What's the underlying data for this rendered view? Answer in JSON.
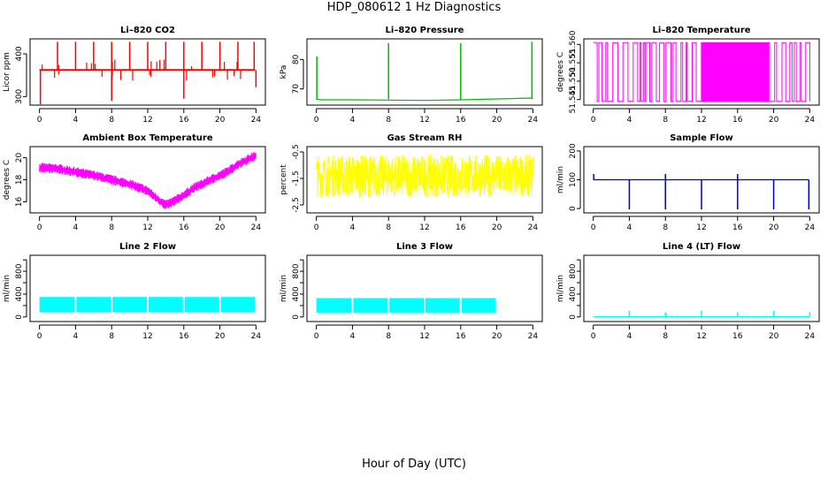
{
  "figure": {
    "title": "HDP_080612  1 Hz Diagnostics",
    "xlabel": "Hour of Day (UTC)"
  },
  "chart_data": [
    {
      "type": "line",
      "title": "Li–820 CO2",
      "ylabel": "Licor ppm",
      "color": "#ff0000",
      "xlim": [
        0,
        24
      ],
      "ylim": [
        280,
        435
      ],
      "yticks": [
        300,
        400
      ],
      "xticks": [
        0,
        4,
        8,
        12,
        16,
        20,
        24
      ],
      "series": [
        {
          "x": [
            0,
            1,
            2,
            3,
            4,
            5,
            6,
            7,
            8,
            9,
            10,
            11,
            12,
            13,
            14,
            15,
            16,
            17,
            18,
            19,
            20,
            21,
            22,
            23,
            23.9
          ],
          "y": [
            362,
            362,
            362,
            362,
            362,
            362,
            362,
            362,
            362,
            362,
            362,
            362,
            362,
            362,
            362,
            362,
            362,
            362,
            362,
            362,
            362,
            362,
            362,
            362,
            362
          ]
        }
      ],
      "spikes_up": [
        {
          "x": 2,
          "y": 428
        },
        {
          "x": 4,
          "y": 428
        },
        {
          "x": 6,
          "y": 428
        },
        {
          "x": 8,
          "y": 428
        },
        {
          "x": 10,
          "y": 428
        },
        {
          "x": 12,
          "y": 428
        },
        {
          "x": 14,
          "y": 428
        },
        {
          "x": 16,
          "y": 428
        },
        {
          "x": 18,
          "y": 428
        },
        {
          "x": 20,
          "y": 428
        },
        {
          "x": 22,
          "y": 428
        },
        {
          "x": 23.8,
          "y": 428
        }
      ],
      "spikes_down": [
        {
          "x": 0.1,
          "y": 282
        },
        {
          "x": 8,
          "y": 290
        },
        {
          "x": 16,
          "y": 295
        },
        {
          "x": 24,
          "y": 322
        }
      ]
    },
    {
      "type": "line",
      "title": "Li–820 Pressure",
      "ylabel": "kPa",
      "color": "#00bb00",
      "xlim": [
        0,
        24
      ],
      "ylim": [
        64.5,
        87
      ],
      "yticks": [
        70,
        80
      ],
      "xticks": [
        0,
        4,
        8,
        12,
        16,
        20,
        24
      ],
      "series": [
        {
          "x": [
            0,
            0.5,
            4,
            8,
            12,
            16,
            20,
            23.9
          ],
          "y": [
            66.5,
            66.3,
            66.3,
            66.2,
            66.1,
            66.3,
            66.6,
            66.9
          ]
        }
      ],
      "spikes_up": [
        {
          "x": 0.05,
          "y": 81
        },
        {
          "x": 8,
          "y": 85.5
        },
        {
          "x": 16,
          "y": 85.5
        },
        {
          "x": 23.9,
          "y": 86
        }
      ]
    },
    {
      "type": "line",
      "title": "Li–820 Temperature",
      "ylabel": "degrees C",
      "color": "#ff00ff",
      "xlim": [
        0,
        24
      ],
      "ylim": [
        51.5435,
        51.5615
      ],
      "yticks": [
        51.545,
        51.55,
        51.555,
        51.56
      ],
      "ytick_labels": [
        "51.545",
        "51.550",
        "51.555",
        "51.560"
      ],
      "xticks": [
        0,
        4,
        8,
        12,
        16,
        20,
        24
      ],
      "levels": [
        51.5445,
        51.5605
      ],
      "dense_band": [
        11.5,
        19.4
      ]
    },
    {
      "type": "line",
      "title": "Ambient Box Temperature",
      "ylabel": "degrees C",
      "color": "#ff00ff",
      "xlim": [
        0,
        24
      ],
      "ylim": [
        15,
        21
      ],
      "yticks": [
        16,
        18,
        20
      ],
      "xticks": [
        0,
        4,
        8,
        12,
        16,
        20,
        24
      ],
      "series": [
        {
          "x": [
            0,
            2,
            4,
            6,
            8,
            10,
            11,
            12,
            13,
            14,
            15,
            16,
            17,
            18,
            19,
            20,
            21,
            22,
            23,
            24
          ],
          "y": [
            19.1,
            19.0,
            18.7,
            18.4,
            18.0,
            17.6,
            17.3,
            17.0,
            16.3,
            15.7,
            16.1,
            16.6,
            17.2,
            17.6,
            18.0,
            18.4,
            18.8,
            19.4,
            19.8,
            20.2
          ]
        }
      ],
      "noise_amplitude": 0.45
    },
    {
      "type": "line",
      "title": "Gas Stream RH",
      "ylabel": "percent",
      "color": "#ffff00",
      "xlim": [
        0,
        24
      ],
      "ylim": [
        -2.8,
        -0.3
      ],
      "yticks": [
        -2.5,
        -1.5,
        -0.5
      ],
      "xticks": [
        0,
        4,
        8,
        12,
        16,
        20,
        24
      ],
      "band": [
        -2.2,
        -0.6
      ]
    },
    {
      "type": "line",
      "title": "Sample Flow",
      "ylabel": "ml/min",
      "color": "#0000cc",
      "xlim": [
        0,
        24
      ],
      "ylim": [
        -15,
        215
      ],
      "yticks": [
        0,
        100,
        200
      ],
      "xticks": [
        0,
        4,
        8,
        12,
        16,
        20,
        24
      ],
      "series": [
        {
          "x": [
            0,
            2,
            4,
            8,
            12,
            16,
            20,
            23.9
          ],
          "y": [
            100,
            100,
            100,
            100,
            100,
            100,
            100,
            100
          ]
        }
      ],
      "spikes_up": [
        {
          "x": 0.05,
          "y": 120
        },
        {
          "x": 8,
          "y": 120
        },
        {
          "x": 16,
          "y": 120
        }
      ],
      "spikes_down": [
        {
          "x": 4,
          "y": -3
        },
        {
          "x": 8,
          "y": -3
        },
        {
          "x": 12,
          "y": -3
        },
        {
          "x": 16,
          "y": -3
        },
        {
          "x": 20,
          "y": -3
        },
        {
          "x": 23.9,
          "y": -3
        }
      ]
    },
    {
      "type": "area",
      "title": "Line 2 Flow",
      "ylabel": "ml/min",
      "color": "#00ffff",
      "xlim": [
        0,
        24
      ],
      "ylim": [
        -80,
        1080
      ],
      "yticks": [
        0,
        200,
        400,
        600,
        800,
        1000
      ],
      "ytick_labels": [
        "0",
        "",
        "400",
        "",
        "800",
        ""
      ],
      "xticks": [
        0,
        4,
        8,
        12,
        16,
        20,
        24
      ],
      "band": [
        90,
        350
      ],
      "gaps": [
        4,
        8,
        12,
        16,
        20,
        24
      ]
    },
    {
      "type": "area",
      "title": "Line 3 Flow",
      "ylabel": "ml/min",
      "color": "#00ffff",
      "xlim": [
        0,
        24
      ],
      "ylim": [
        -80,
        1080
      ],
      "yticks": [
        0,
        200,
        400,
        600,
        800,
        1000
      ],
      "ytick_labels": [
        "0",
        "",
        "400",
        "",
        "800",
        ""
      ],
      "xticks": [
        0,
        4,
        8,
        12,
        16,
        20,
        24
      ],
      "band": [
        70,
        330
      ],
      "gaps": [
        4,
        8,
        12,
        16,
        20
      ]
    },
    {
      "type": "line",
      "title": "Line 4 (LT) Flow",
      "ylabel": "ml/min",
      "color": "#00ffff",
      "xlim": [
        0,
        24
      ],
      "ylim": [
        -80,
        1080
      ],
      "yticks": [
        0,
        200,
        400,
        600,
        800,
        1000
      ],
      "ytick_labels": [
        "0",
        "",
        "400",
        "",
        "800",
        ""
      ],
      "xticks": [
        0,
        4,
        8,
        12,
        16,
        20,
        24
      ],
      "series": [
        {
          "x": [
            0,
            4,
            8,
            12,
            16,
            20,
            24
          ],
          "y": [
            5,
            5,
            5,
            5,
            5,
            5,
            5
          ]
        }
      ],
      "spikes_up": [
        {
          "x": 4,
          "y": 110
        },
        {
          "x": 8,
          "y": 85
        },
        {
          "x": 12,
          "y": 110
        },
        {
          "x": 16,
          "y": 85
        },
        {
          "x": 20,
          "y": 110
        },
        {
          "x": 24,
          "y": 85
        }
      ]
    }
  ]
}
